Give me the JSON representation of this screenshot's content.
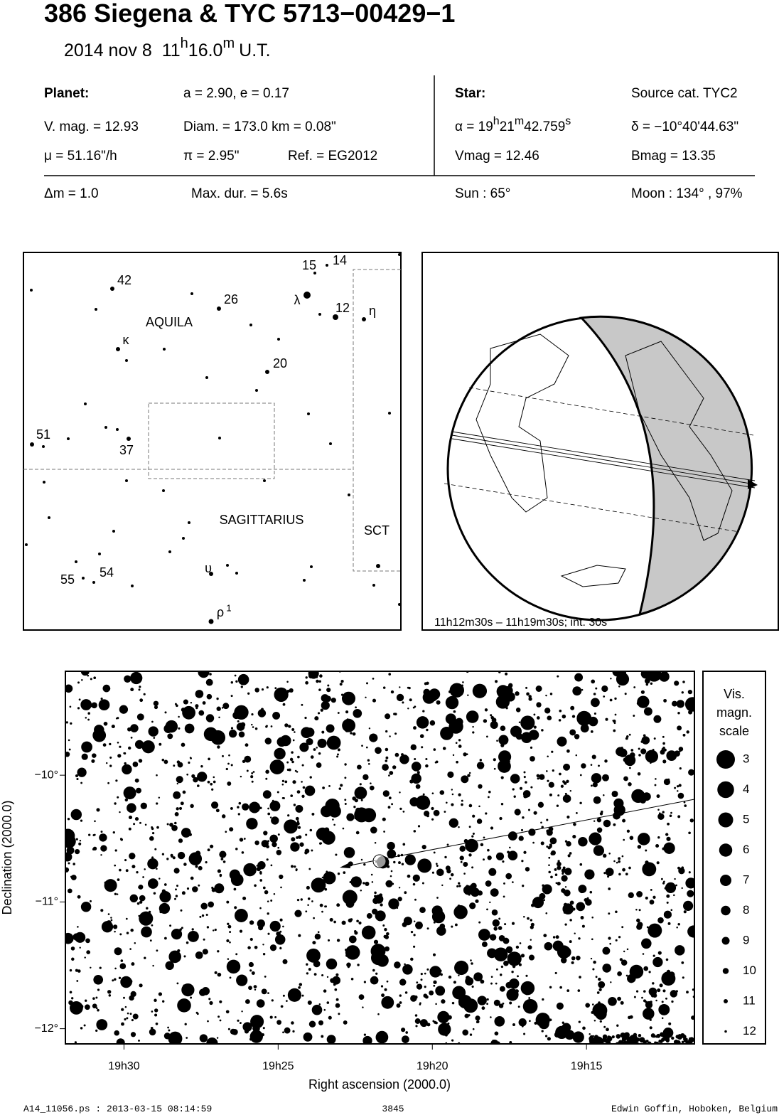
{
  "header": {
    "title": "386 Siegena  &  TYC 5713−00429−1",
    "date": "2014 nov  8",
    "hour": "11",
    "hour_unit": "h",
    "minute": "16.0",
    "minute_unit": "m",
    "time_scale": "U.T."
  },
  "info": {
    "planet_label": "Planet:",
    "orbit": "a = 2.90, e = 0.17",
    "vmag": "V. mag. = 12.93",
    "diam": "Diam. = 173.0 km = 0.08\"",
    "mu": "μ =  51.16\"/h",
    "pi": "π =  2.95\"",
    "ref": "Ref. = EG2012",
    "star_label": "Star:",
    "source": "Source cat.  TYC2",
    "ra": [
      "α = 19",
      "h",
      "21",
      "m",
      "42.759",
      "s"
    ],
    "dec": "δ = −10°40'44.63\"",
    "star_vmag": "Vmag = 12.46",
    "bmag": "Bmag = 13.35",
    "dm": "Δm = 1.0",
    "maxdur": "Max. dur. = 5.6s",
    "sun": "Sun :  65°",
    "moon": "Moon : 134° , 97%"
  },
  "finder": {
    "labels": [
      "15",
      "14",
      "42",
      "26",
      "λ",
      "12",
      "η",
      "AQUILA",
      "κ",
      "20",
      "51",
      "37",
      "SAGITTARIUS",
      "SCT",
      "υ",
      "55",
      "54",
      "ρ",
      "1"
    ]
  },
  "globe": {
    "caption": "11h12m30s – 11h19m30s; int. 30s"
  },
  "star_chart": {
    "x_label": "Right ascension (2000.0)",
    "y_label": "Declination (2000.0)",
    "xlim": [
      31.9,
      11.5
    ],
    "ylim": [
      -9.18,
      -12.12
    ],
    "xticks": [
      {
        "value": 30,
        "label": "19h30"
      },
      {
        "value": 25,
        "label": "19h25"
      },
      {
        "value": 20,
        "label": "19h20"
      },
      {
        "value": 15,
        "label": "19h15"
      }
    ],
    "yticks": [
      {
        "value": -10,
        "label": "−10°"
      },
      {
        "value": -11,
        "label": "−11°"
      },
      {
        "value": -12,
        "label": "−12°"
      }
    ],
    "legend_title": [
      "Vis.",
      "magn.",
      "scale"
    ],
    "magnitudes": [
      3,
      4,
      5,
      6,
      7,
      8,
      9,
      10,
      11,
      12
    ]
  },
  "footer": {
    "file": "A14_11056.ps : 2013-03-15 08:14:59",
    "number": "3845",
    "author": "Edwin Goffin, Hoboken, Belgium"
  }
}
